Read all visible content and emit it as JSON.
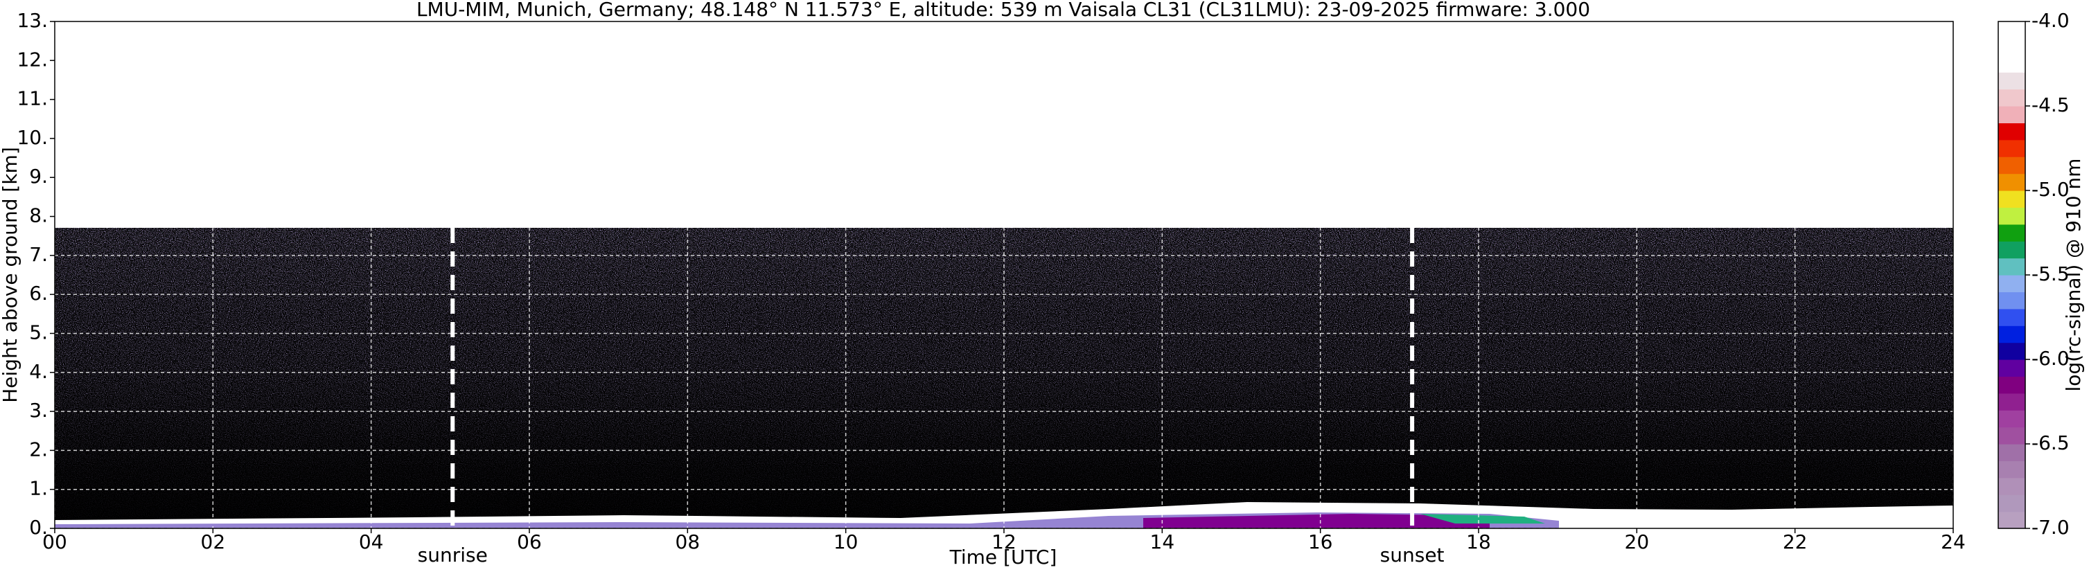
{
  "chart_data": {
    "type": "heatmap",
    "title": "LMU-MIM, Munich, Germany; 48.148° N 11.573° E, altitude: 539 m    Vaisala CL31 (CL31LMU): 23-09-2025    firmware: 3.000",
    "xlabel": "Time [UTC]",
    "ylabel": "Height above ground [km]",
    "xlim": [
      0,
      24
    ],
    "ylim": [
      0,
      13
    ],
    "xticks": [
      {
        "value": 0,
        "label": "00"
      },
      {
        "value": 2,
        "label": "02"
      },
      {
        "value": 4,
        "label": "04"
      },
      {
        "value": 6,
        "label": "06"
      },
      {
        "value": 8,
        "label": "08"
      },
      {
        "value": 10,
        "label": "10"
      },
      {
        "value": 12,
        "label": "12"
      },
      {
        "value": 14,
        "label": "14"
      },
      {
        "value": 16,
        "label": "16"
      },
      {
        "value": 18,
        "label": "18"
      },
      {
        "value": 20,
        "label": "20"
      },
      {
        "value": 22,
        "label": "22"
      },
      {
        "value": 24,
        "label": "24"
      }
    ],
    "yticks": [
      {
        "value": 0,
        "label": "0."
      },
      {
        "value": 1,
        "label": "1."
      },
      {
        "value": 2,
        "label": "2."
      },
      {
        "value": 3,
        "label": "3."
      },
      {
        "value": 4,
        "label": "4."
      },
      {
        "value": 5,
        "label": "5."
      },
      {
        "value": 6,
        "label": "6."
      },
      {
        "value": 7,
        "label": "7."
      },
      {
        "value": 8,
        "label": "8."
      },
      {
        "value": 9,
        "label": "9."
      },
      {
        "value": 10,
        "label": "10."
      },
      {
        "value": 11,
        "label": "11."
      },
      {
        "value": 12,
        "label": "12."
      },
      {
        "value": 13,
        "label": "13."
      }
    ],
    "grid": true,
    "annotations": [
      {
        "text": "sunrise",
        "x": 5.03
      },
      {
        "text": "sunset",
        "x": 17.16
      }
    ],
    "colorbar": {
      "label": "log(rc-signal) @ 910 nm",
      "clim": [
        -7,
        -4
      ],
      "ticks": [
        {
          "value": -7,
          "label": "-7.0"
        },
        -6.5,
        {
          "value": -6,
          "label": "-6.0"
        },
        -5.5,
        {
          "value": -5,
          "label": "-5.0"
        },
        -4.5,
        {
          "value": -4,
          "label": "-4.0"
        }
      ],
      "colors": [
        "#b8a0c0",
        "#b098bc",
        "#b090b8",
        "#a880b0",
        "#a070a8",
        "#a050a0",
        "#a040a0",
        "#902090",
        "#800080",
        "#6000a0",
        "#1000a0",
        "#0020e0",
        "#3050f0",
        "#7090f0",
        "#90b0f0",
        "#60c0c0",
        "#10a060",
        "#10a010",
        "#c0f040",
        "#f0e020",
        "#f09000",
        "#f06000",
        "#f03000",
        "#e00000",
        "#f0b0b8",
        "#f0c8cc",
        "#ece0e4",
        "#ffffff",
        "#ffffff",
        "#ffffff"
      ]
    }
  }
}
